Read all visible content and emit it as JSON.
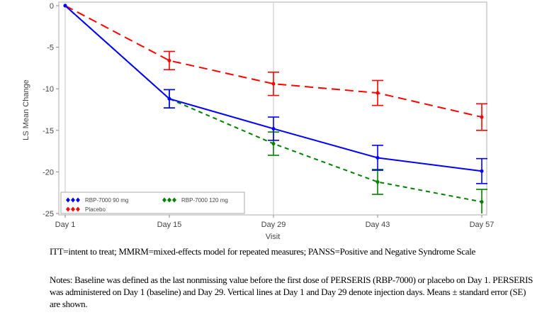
{
  "chart_data": {
    "type": "line",
    "title": "",
    "xlabel": "Visit",
    "ylabel": "LS Mean Change",
    "categories": [
      "Day 1",
      "Day 15",
      "Day 29",
      "Day 43",
      "Day 57"
    ],
    "ylim": [
      -25,
      0
    ],
    "yticks": [
      0,
      -5,
      -10,
      -15,
      -20,
      -25
    ],
    "ytick_labels": [
      "0",
      "-5",
      "-10",
      "-15",
      "-20",
      "-25"
    ],
    "reference_lines_at": [
      "Day 1",
      "Day 29"
    ],
    "legend_position": "bottom-left",
    "series": [
      {
        "name": "RBP-7000 90 mg",
        "color": "#0000ff",
        "dash": "solid",
        "values": [
          0,
          -11.2,
          -14.8,
          -18.3,
          -19.9
        ],
        "se": [
          0,
          1.1,
          1.4,
          1.5,
          1.5
        ]
      },
      {
        "name": "RBP-7000 120 mg",
        "color": "#008000",
        "dash": "short",
        "values": [
          0,
          -11.2,
          -16.6,
          -21.2,
          -23.6
        ],
        "se": [
          0,
          1.1,
          1.4,
          1.5,
          1.5
        ]
      },
      {
        "name": "Placebo",
        "color": "#ff0000",
        "dash": "long",
        "values": [
          0,
          -6.6,
          -9.4,
          -10.5,
          -13.4
        ],
        "se": [
          0,
          1.1,
          1.4,
          1.5,
          1.6
        ]
      }
    ]
  },
  "notes": {
    "abbreviations": "ITT=intent to treat; MMRM=mixed-effects model for repeated measures; PANSS=Positive and Negative Syndrome Scale",
    "notes": "Notes: Baseline was defined as the last nonmissing value before the first dose of PERSERIS (RBP-7000) or placebo on Day 1. PERSERIS was administered on Day 1 (baseline) and Day 29. Vertical lines at Day 1 and Day 29 denote injection days. Means ± standard error (SE) are shown."
  }
}
